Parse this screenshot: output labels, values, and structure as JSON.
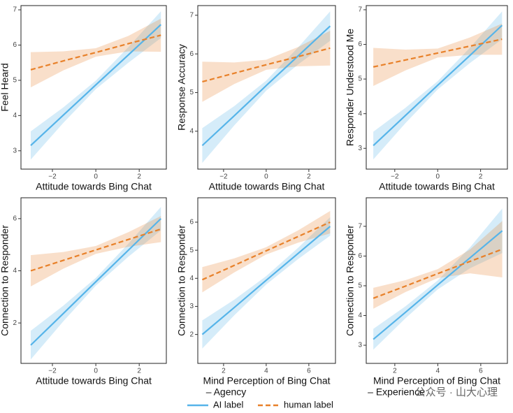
{
  "chart_data": [
    {
      "type": "line",
      "ylabel": "Feel Heard",
      "xlabel": [
        "Attitude towards Bing Chat"
      ],
      "xlim": [
        -3.45,
        3.25
      ],
      "ylim": [
        2.48,
        7.12
      ],
      "xticks": [
        {
          "value": -2,
          "label": "−2"
        },
        0,
        2
      ],
      "yticks": [
        3,
        4,
        5,
        6,
        7
      ],
      "x": [
        -3,
        -1.5,
        0,
        1.5,
        3
      ],
      "series": [
        {
          "values": [
            3.15,
            4.01,
            4.87,
            5.72,
            6.58
          ],
          "lower": [
            2.75,
            3.79,
            4.75,
            5.5,
            6.2
          ],
          "upper": [
            3.55,
            4.23,
            4.99,
            5.94,
            6.96
          ]
        },
        {
          "values": [
            5.3,
            5.55,
            5.79,
            6.04,
            6.28
          ],
          "lower": [
            4.8,
            5.28,
            5.67,
            5.82,
            5.81
          ],
          "upper": [
            5.8,
            5.82,
            5.91,
            6.26,
            6.75
          ]
        }
      ]
    },
    {
      "type": "line",
      "ylabel": "Response Accuracy",
      "xlabel": [
        "Attitude towards Bing Chat"
      ],
      "xlim": [
        -3.21,
        3.25
      ],
      "ylim": [
        3.02,
        7.25
      ],
      "xticks": [
        {
          "value": -2,
          "label": "−2"
        },
        0,
        2
      ],
      "yticks": [
        4,
        5,
        6,
        7
      ],
      "x": [
        -3,
        -1.5,
        0,
        1.5,
        3
      ],
      "series": [
        {
          "values": [
            3.63,
            4.4,
            5.18,
            5.95,
            6.72
          ],
          "lower": [
            3.18,
            4.15,
            5.05,
            5.73,
            6.34
          ],
          "upper": [
            4.08,
            4.65,
            5.31,
            6.17,
            7.1
          ]
        },
        {
          "values": [
            5.28,
            5.5,
            5.72,
            5.93,
            6.15
          ],
          "lower": [
            4.76,
            5.22,
            5.59,
            5.68,
            5.7
          ],
          "upper": [
            5.8,
            5.78,
            5.85,
            6.18,
            6.6
          ]
        }
      ]
    },
    {
      "type": "line",
      "ylabel": "Responder Understood Me",
      "xlabel": [
        "Attitude towards Bing Chat"
      ],
      "xlim": [
        -3.33,
        3.25
      ],
      "ylim": [
        2.4,
        7.12
      ],
      "xticks": [
        {
          "value": -2,
          "label": "−2"
        },
        0,
        2
      ],
      "yticks": [
        3,
        4,
        5,
        6,
        7
      ],
      "x": [
        -3,
        -1.5,
        0,
        1.5,
        3
      ],
      "series": [
        {
          "values": [
            3.08,
            3.95,
            4.82,
            5.68,
            6.55
          ],
          "lower": [
            2.68,
            3.73,
            4.7,
            5.46,
            6.15
          ],
          "upper": [
            3.48,
            4.17,
            4.94,
            5.9,
            6.95
          ]
        },
        {
          "values": [
            5.35,
            5.55,
            5.75,
            5.95,
            6.15
          ],
          "lower": [
            4.8,
            5.25,
            5.62,
            5.7,
            5.7
          ],
          "upper": [
            5.9,
            5.85,
            5.88,
            6.2,
            6.6
          ]
        }
      ]
    },
    {
      "type": "line",
      "ylabel": "Connection to Responder",
      "xlabel": [
        "Attitude towards Bing Chat"
      ],
      "xlim": [
        -3.45,
        3.25
      ],
      "ylim": [
        0.45,
        6.8
      ],
      "xticks": [
        {
          "value": -2,
          "label": "−2"
        },
        0,
        2
      ],
      "yticks": [
        2,
        4,
        6
      ],
      "x": [
        -3,
        -1.5,
        0,
        1.5,
        3
      ],
      "series": [
        {
          "values": [
            1.15,
            2.36,
            3.58,
            4.79,
            6.0
          ],
          "lower": [
            0.6,
            2.06,
            3.43,
            4.54,
            5.55
          ],
          "upper": [
            1.7,
            2.66,
            3.73,
            5.04,
            6.45
          ]
        },
        {
          "values": [
            4.0,
            4.4,
            4.8,
            5.2,
            5.6
          ],
          "lower": [
            3.4,
            4.08,
            4.65,
            4.92,
            5.1
          ],
          "upper": [
            4.6,
            4.72,
            4.95,
            5.48,
            6.1
          ]
        }
      ]
    },
    {
      "type": "line",
      "ylabel": "Connection to Responder",
      "xlabel": [
        "Mind Perception of Bing Chat",
        "– Agency"
      ],
      "xlim": [
        0.79,
        7.25
      ],
      "ylim": [
        0.97,
        6.87
      ],
      "xticks": [
        2,
        4,
        6
      ],
      "yticks": [
        2,
        3,
        4,
        5,
        6
      ],
      "x": [
        1,
        2.5,
        4,
        5.5,
        7
      ],
      "series": [
        {
          "values": [
            2.0,
            2.96,
            3.93,
            4.89,
            5.85
          ],
          "lower": [
            1.5,
            2.68,
            3.78,
            4.69,
            5.52
          ],
          "upper": [
            2.5,
            3.24,
            4.08,
            5.09,
            6.18
          ]
        },
        {
          "values": [
            3.95,
            4.46,
            4.98,
            5.49,
            6.0
          ],
          "lower": [
            3.5,
            4.21,
            4.85,
            5.27,
            5.6
          ],
          "upper": [
            4.4,
            4.71,
            5.11,
            5.71,
            6.4
          ]
        }
      ]
    },
    {
      "type": "line",
      "ylabel": "Connection to Responder",
      "xlabel": [
        "Mind Perception of Bing Chat",
        "– Experience"
      ],
      "xlim": [
        0.67,
        7.24
      ],
      "ylim": [
        2.39,
        7.96
      ],
      "xticks": [
        2,
        4,
        6
      ],
      "yticks": [
        3,
        4,
        5,
        6,
        7
      ],
      "x": [
        1,
        2.5,
        4,
        5.5,
        7
      ],
      "series": [
        {
          "values": [
            3.2,
            4.11,
            5.03,
            5.94,
            6.85
          ],
          "lower": [
            2.85,
            3.91,
            4.88,
            5.59,
            6.1
          ],
          "upper": [
            3.55,
            4.31,
            5.18,
            6.29,
            7.6
          ]
        },
        {
          "values": [
            4.58,
            4.99,
            5.41,
            5.82,
            6.23
          ],
          "lower": [
            4.23,
            4.79,
            5.26,
            5.42,
            5.28
          ],
          "upper": [
            4.93,
            5.19,
            5.56,
            6.22,
            7.18
          ]
        }
      ]
    }
  ],
  "legend": {
    "items": [
      {
        "name": "AI label",
        "color": "#56b4e9",
        "dashed": false
      },
      {
        "name": "human label",
        "color": "#e8812a",
        "dashed": true
      }
    ]
  },
  "watermark": "公众号 · 山大心理"
}
